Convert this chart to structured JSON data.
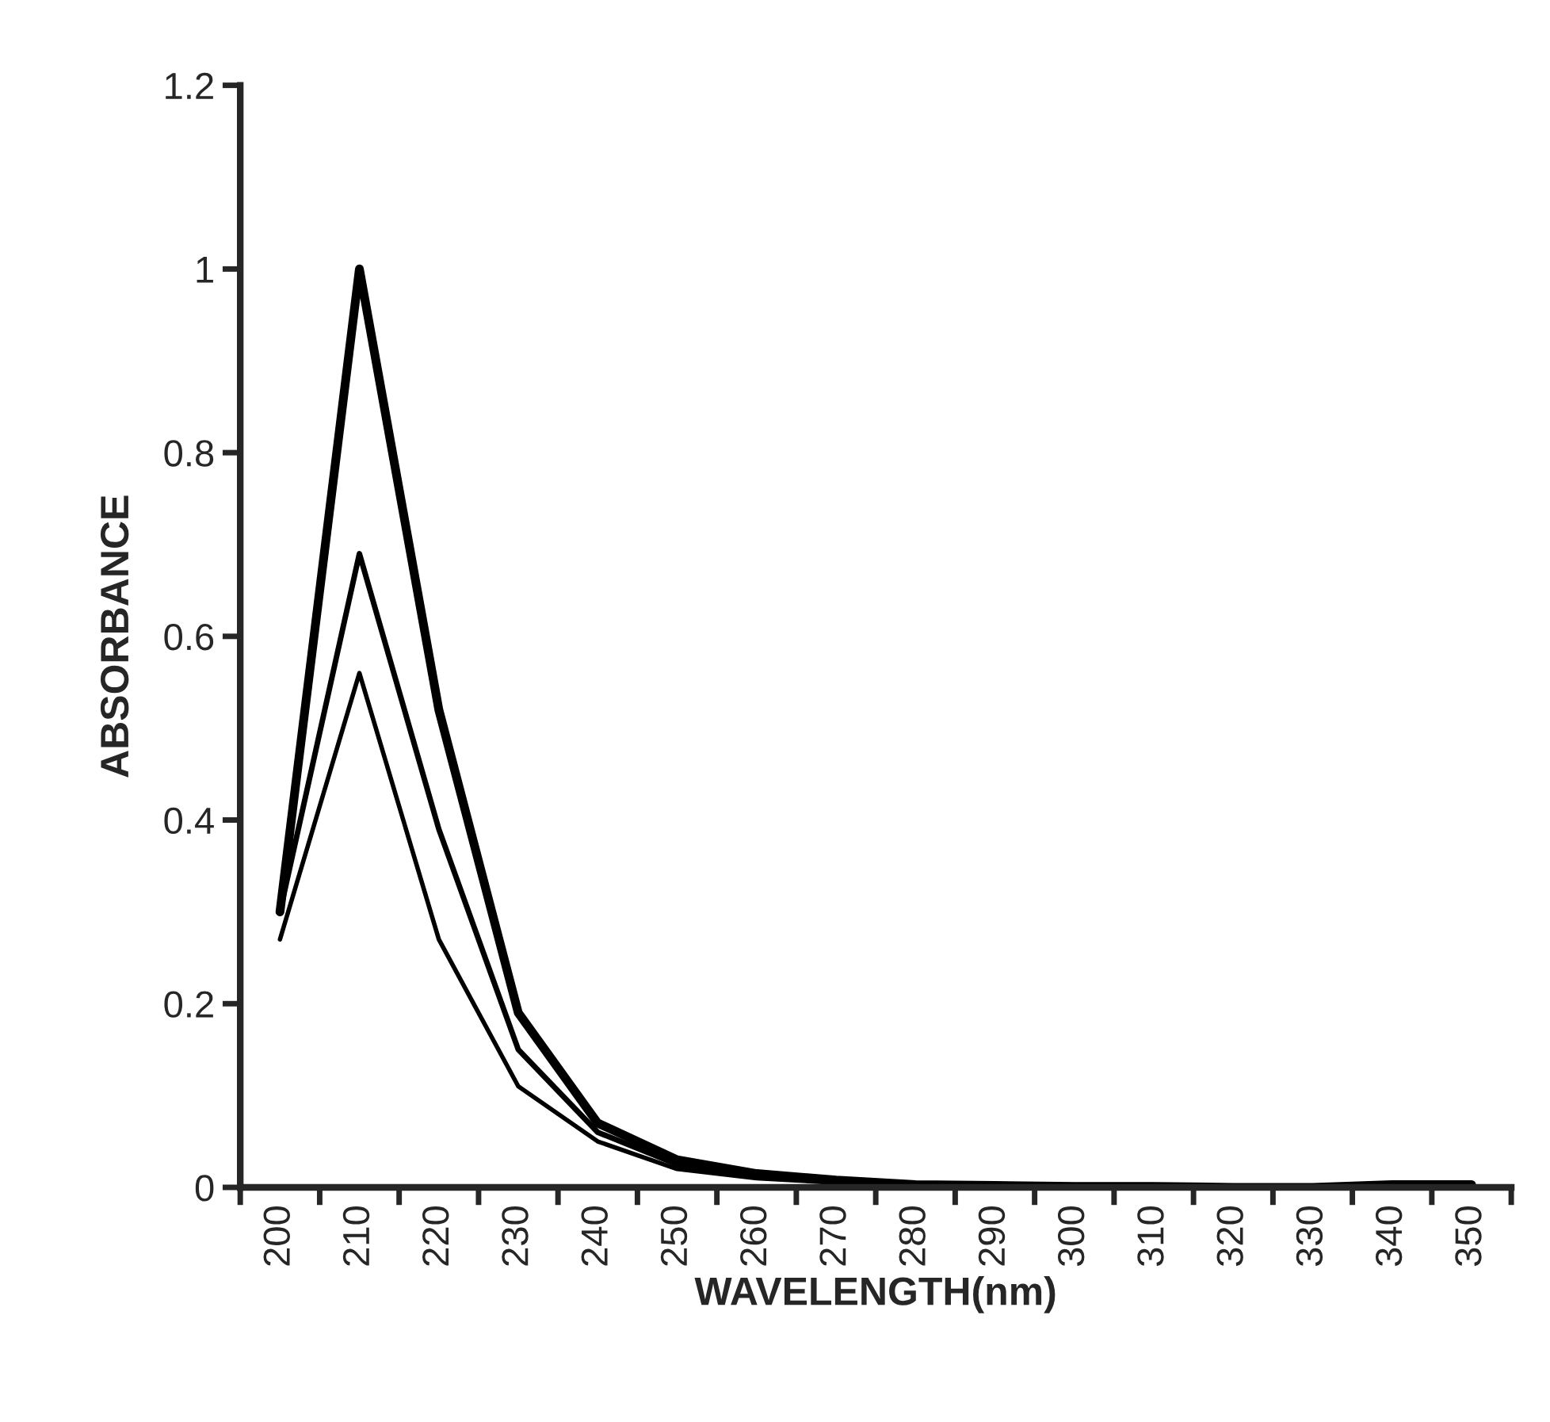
{
  "chart_data": {
    "type": "line",
    "xlabel": "WAVELENGTH(nm)",
    "ylabel": "ABSORBANCE",
    "categories": [
      "200",
      "210",
      "220",
      "230",
      "240",
      "250",
      "260",
      "270",
      "280",
      "290",
      "300",
      "310",
      "320",
      "330",
      "340",
      "350"
    ],
    "series": [
      {
        "color": "#000000",
        "values": [
          0.3,
          1.0,
          0.52,
          0.19,
          0.07,
          0.03,
          0.015,
          0.008,
          0.003,
          0.002,
          0.001,
          0.001,
          0,
          0,
          0.003,
          0.003
        ]
      },
      {
        "color": "#000000",
        "values": [
          0.3,
          0.69,
          0.39,
          0.15,
          0.06,
          0.025,
          0.012,
          0.006,
          0.002,
          0.001,
          0.001,
          0,
          0,
          0,
          0.002,
          0.002
        ]
      },
      {
        "color": "#000000",
        "values": [
          0.27,
          0.56,
          0.27,
          0.11,
          0.05,
          0.02,
          0.01,
          0.005,
          0.002,
          0.001,
          0,
          0,
          0,
          0,
          0.001,
          0.001
        ]
      }
    ],
    "ylim": [
      0,
      1.2
    ],
    "yticks": [
      0,
      0.2,
      0.4,
      0.6,
      0.8,
      1,
      1.2
    ],
    "grid": false,
    "legend": false,
    "marker": "none",
    "line_style": "solid"
  }
}
